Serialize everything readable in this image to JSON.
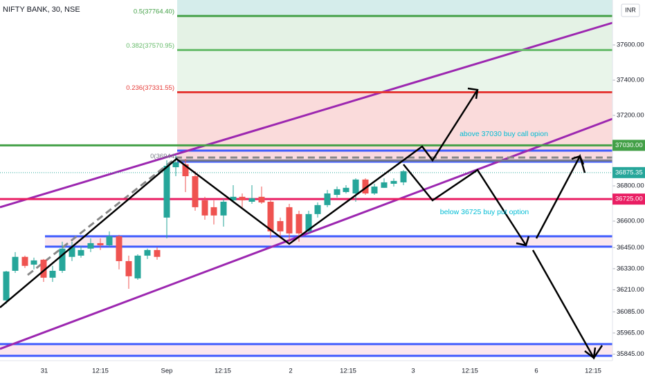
{
  "header": {
    "symbol": "NIFTY BANK, 30, NSE",
    "currency": "INR"
  },
  "chart_data": {
    "type": "candlestick",
    "up_color": "#26a69a",
    "down_color": "#ef5350",
    "candles": [
      {
        "o": 36150,
        "h": 36318,
        "l": 36130,
        "c": 36314
      },
      {
        "o": 36318,
        "h": 36424,
        "l": 36306,
        "c": 36397
      },
      {
        "o": 36397,
        "h": 36404,
        "l": 36334,
        "c": 36346
      },
      {
        "o": 36353,
        "h": 36393,
        "l": 36326,
        "c": 36377
      },
      {
        "o": 36381,
        "h": 36385,
        "l": 36255,
        "c": 36279
      },
      {
        "o": 36279,
        "h": 36346,
        "l": 36255,
        "c": 36318
      },
      {
        "o": 36318,
        "h": 36483,
        "l": 36306,
        "c": 36444
      },
      {
        "o": 36397,
        "h": 36483,
        "l": 36373,
        "c": 36451
      },
      {
        "o": 36404,
        "h": 36459,
        "l": 36393,
        "c": 36436
      },
      {
        "o": 36444,
        "h": 36502,
        "l": 36424,
        "c": 36475
      },
      {
        "o": 36475,
        "h": 36502,
        "l": 36436,
        "c": 36463
      },
      {
        "o": 36463,
        "h": 36542,
        "l": 36451,
        "c": 36514
      },
      {
        "o": 36514,
        "h": 36522,
        "l": 36326,
        "c": 36373
      },
      {
        "o": 36373,
        "h": 36404,
        "l": 36216,
        "c": 36287
      },
      {
        "o": 36275,
        "h": 36412,
        "l": 36267,
        "c": 36404
      },
      {
        "o": 36404,
        "h": 36444,
        "l": 36385,
        "c": 36436
      },
      {
        "o": 36436,
        "h": 36451,
        "l": 36381,
        "c": 36397
      },
      {
        "o": 36620,
        "h": 36945,
        "l": 36502,
        "c": 36914
      },
      {
        "o": 36906,
        "h": 36973,
        "l": 36855,
        "c": 36934
      },
      {
        "o": 36922,
        "h": 36953,
        "l": 36765,
        "c": 36855
      },
      {
        "o": 36855,
        "h": 36883,
        "l": 36659,
        "c": 36679
      },
      {
        "o": 36718,
        "h": 36738,
        "l": 36608,
        "c": 36632
      },
      {
        "o": 36679,
        "h": 36718,
        "l": 36581,
        "c": 36632
      },
      {
        "o": 36632,
        "h": 36726,
        "l": 36569,
        "c": 36710
      },
      {
        "o": 36718,
        "h": 36804,
        "l": 36706,
        "c": 36738
      },
      {
        "o": 36738,
        "h": 36757,
        "l": 36679,
        "c": 36718
      },
      {
        "o": 36710,
        "h": 36804,
        "l": 36698,
        "c": 36730
      },
      {
        "o": 36738,
        "h": 36796,
        "l": 36698,
        "c": 36706
      },
      {
        "o": 36710,
        "h": 36718,
        "l": 36502,
        "c": 36542
      },
      {
        "o": 36600,
        "h": 36620,
        "l": 36502,
        "c": 36542
      },
      {
        "o": 36679,
        "h": 36698,
        "l": 36483,
        "c": 36530
      },
      {
        "o": 36640,
        "h": 36659,
        "l": 36483,
        "c": 36530
      },
      {
        "o": 36542,
        "h": 36659,
        "l": 36530,
        "c": 36640
      },
      {
        "o": 36640,
        "h": 36706,
        "l": 36620,
        "c": 36691
      },
      {
        "o": 36691,
        "h": 36777,
        "l": 36679,
        "c": 36757
      },
      {
        "o": 36749,
        "h": 36796,
        "l": 36734,
        "c": 36781
      },
      {
        "o": 36765,
        "h": 36804,
        "l": 36757,
        "c": 36789
      },
      {
        "o": 36757,
        "h": 36843,
        "l": 36710,
        "c": 36836
      },
      {
        "o": 36836,
        "h": 36843,
        "l": 36749,
        "c": 36757
      },
      {
        "o": 36757,
        "h": 36812,
        "l": 36749,
        "c": 36796
      },
      {
        "o": 36789,
        "h": 36843,
        "l": 36789,
        "c": 36820
      },
      {
        "o": 36812,
        "h": 36843,
        "l": 36796,
        "c": 36828
      },
      {
        "o": 36820,
        "h": 36890,
        "l": 36804,
        "c": 36883
      }
    ],
    "ylim": [
      35808,
      37855
    ],
    "yticks": [
      {
        "value": 37600,
        "label": "37600.00"
      },
      {
        "value": 37400,
        "label": "37400.00"
      },
      {
        "value": 37200,
        "label": "37200.00"
      },
      {
        "value": 36800,
        "label": "36800.00"
      },
      {
        "value": 36600,
        "label": "36600.00"
      },
      {
        "value": 36450,
        "label": "36450.00"
      },
      {
        "value": 36330,
        "label": "36330.00"
      },
      {
        "value": 36210,
        "label": "36210.00"
      },
      {
        "value": 36085,
        "label": "36085.00"
      },
      {
        "value": 35965,
        "label": "35965.00"
      },
      {
        "value": 35845,
        "label": "35845.00"
      }
    ],
    "x_labels": [
      "31",
      "12:15",
      "Sep",
      "12:15",
      "2",
      "12:15",
      "3",
      "12:15",
      "6",
      "12:15"
    ],
    "fib_levels": [
      {
        "label": "0.5(37764.40)",
        "value": 37764.4,
        "color": "#43a047"
      },
      {
        "label": "0.382(37570.95)",
        "value": 37570.95,
        "color": "#66bb6a"
      },
      {
        "label": "0.236(37331.55)",
        "value": 37331.55,
        "color": "#e53935"
      },
      {
        "label": "0(36944",
        "value": 36944,
        "color": "#787b86"
      }
    ],
    "price_lines": [
      {
        "value": 37030,
        "label": "37030.00",
        "color": "#43a047"
      },
      {
        "value": 36875.35,
        "label": "36875.35",
        "color": "#26a69a"
      },
      {
        "value": 36725,
        "label": "36725.00",
        "color": "#e91e63"
      }
    ],
    "annotations": [
      "above 37030 buy call opion",
      "below 36725 buy put option"
    ]
  }
}
